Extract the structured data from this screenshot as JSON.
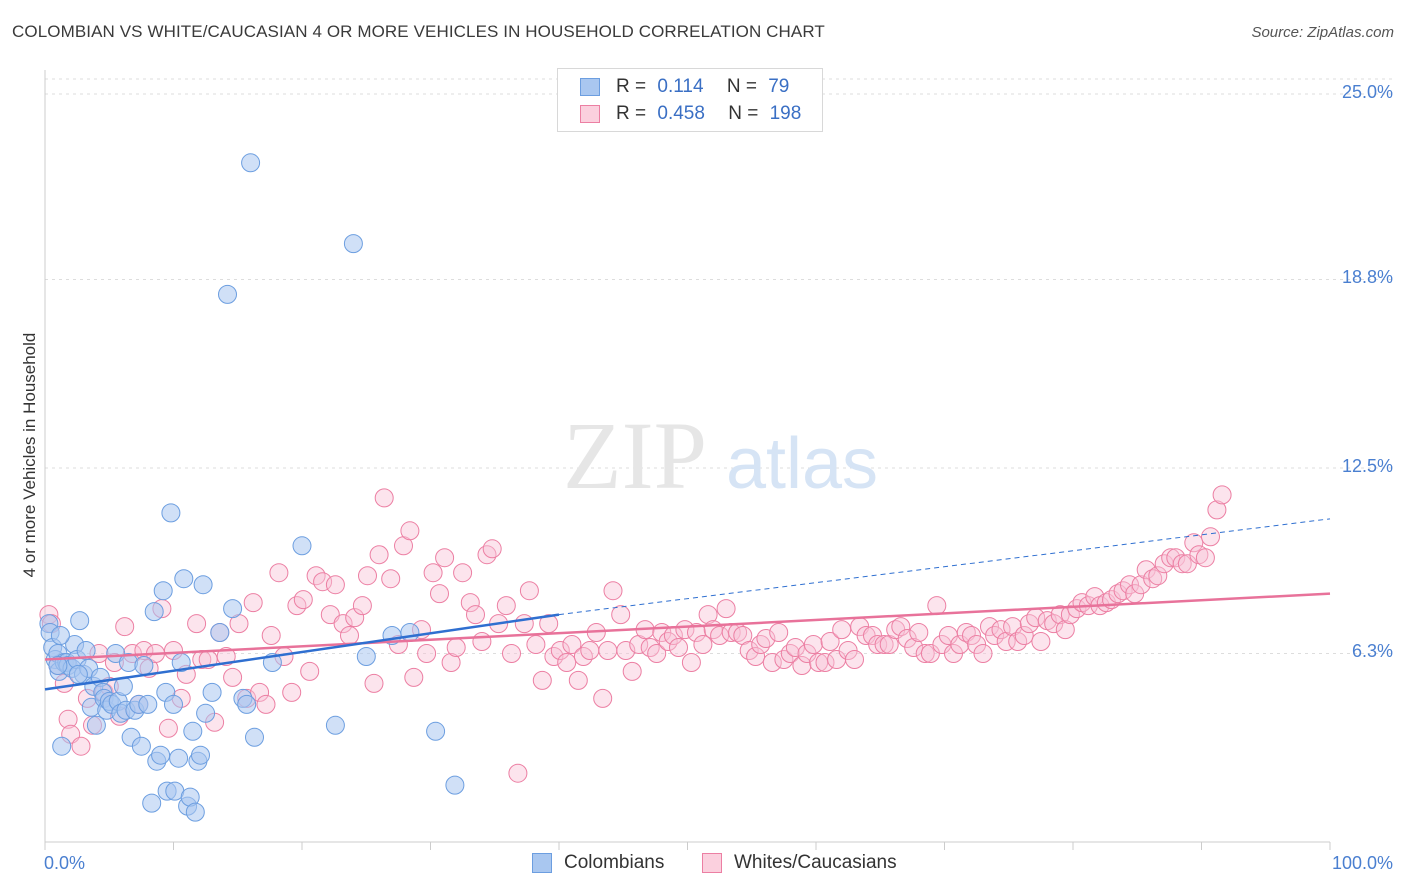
{
  "header": {
    "title": "COLOMBIAN VS WHITE/CAUCASIAN 4 OR MORE VEHICLES IN HOUSEHOLD CORRELATION CHART",
    "source": "Source: ZipAtlas.com"
  },
  "watermark": {
    "zip": "ZIP",
    "atlas": "atlas"
  },
  "legend": {
    "rows": [
      {
        "r_label": "R =",
        "r_value": "0.114",
        "n_label": "N =",
        "n_value": "79",
        "color": "#a9c7f0"
      },
      {
        "r_label": "R =",
        "r_value": "0.458",
        "n_label": "N =",
        "n_value": "198",
        "color": "#f6b8cb"
      }
    ]
  },
  "bottom_legend": {
    "items": [
      {
        "label": "Colombians",
        "color": "#a9c7f0"
      },
      {
        "label": "Whites/Caucasians",
        "color": "#f6b8cb"
      }
    ]
  },
  "chart_data": {
    "type": "scatter",
    "title": "COLOMBIAN VS WHITE/CAUCASIAN 4 OR MORE VEHICLES IN HOUSEHOLD CORRELATION CHART",
    "xlabel": "",
    "ylabel": "4 or more Vehicles in Household",
    "xlim": [
      0,
      100
    ],
    "ylim": [
      0,
      25.8
    ],
    "y_ticks": [
      6.3,
      12.5,
      18.8,
      25.0
    ],
    "y_tick_labels": [
      "6.3%",
      "12.5%",
      "18.8%",
      "25.0%"
    ],
    "x_tick_labels": [
      "0.0%",
      "100.0%"
    ],
    "grid": true,
    "legend_placement": "top-center",
    "colors": {
      "blue": "#6c9ee0",
      "pink": "#ec7fa3",
      "blue_line": "#2f6fd0",
      "pink_line": "#e8729a"
    },
    "series": [
      {
        "name": "Colombians",
        "color": "blue",
        "trend": {
          "x": [
            0,
            40
          ],
          "y": [
            5.1,
            7.6
          ],
          "extended_to": [
            100,
            10.8
          ]
        },
        "points": [
          [
            0.3,
            7.3
          ],
          [
            0.4,
            7.0
          ],
          [
            0.6,
            6.5
          ],
          [
            0.8,
            6.1
          ],
          [
            1.0,
            6.3
          ],
          [
            1.1,
            5.7
          ],
          [
            1.3,
            3.2
          ],
          [
            1.5,
            6.0
          ],
          [
            1.7,
            6.0
          ],
          [
            1.8,
            5.9
          ],
          [
            2.1,
            5.8
          ],
          [
            2.3,
            6.6
          ],
          [
            2.5,
            6.1
          ],
          [
            2.7,
            7.4
          ],
          [
            3.0,
            5.6
          ],
          [
            3.2,
            6.4
          ],
          [
            3.4,
            5.8
          ],
          [
            3.6,
            4.5
          ],
          [
            3.8,
            5.2
          ],
          [
            4.0,
            3.9
          ],
          [
            4.3,
            5.5
          ],
          [
            4.5,
            5.0
          ],
          [
            4.6,
            4.8
          ],
          [
            4.8,
            4.4
          ],
          [
            5.0,
            4.7
          ],
          [
            5.2,
            4.6
          ],
          [
            5.5,
            6.3
          ],
          [
            5.7,
            4.7
          ],
          [
            5.9,
            4.3
          ],
          [
            6.1,
            5.2
          ],
          [
            6.3,
            4.4
          ],
          [
            6.5,
            6.0
          ],
          [
            6.7,
            3.5
          ],
          [
            7.0,
            4.4
          ],
          [
            7.3,
            4.6
          ],
          [
            7.5,
            3.2
          ],
          [
            7.7,
            5.9
          ],
          [
            8.0,
            4.6
          ],
          [
            8.3,
            1.3
          ],
          [
            8.5,
            7.7
          ],
          [
            8.7,
            2.7
          ],
          [
            9.0,
            2.9
          ],
          [
            9.2,
            8.4
          ],
          [
            9.4,
            5.0
          ],
          [
            9.5,
            1.7
          ],
          [
            9.8,
            11.0
          ],
          [
            10.0,
            4.6
          ],
          [
            10.1,
            1.7
          ],
          [
            10.4,
            2.8
          ],
          [
            10.6,
            6.0
          ],
          [
            10.8,
            8.8
          ],
          [
            11.1,
            1.2
          ],
          [
            11.3,
            1.5
          ],
          [
            11.5,
            3.7
          ],
          [
            11.7,
            1.0
          ],
          [
            11.9,
            2.7
          ],
          [
            12.1,
            2.9
          ],
          [
            12.3,
            8.6
          ],
          [
            12.5,
            4.3
          ],
          [
            13.0,
            5.0
          ],
          [
            13.6,
            7.0
          ],
          [
            14.2,
            18.3
          ],
          [
            14.6,
            7.8
          ],
          [
            15.4,
            4.8
          ],
          [
            15.7,
            4.6
          ],
          [
            16.0,
            22.7
          ],
          [
            16.3,
            3.5
          ],
          [
            17.7,
            6.0
          ],
          [
            20.0,
            9.9
          ],
          [
            22.6,
            3.9
          ],
          [
            24.0,
            20.0
          ],
          [
            25.0,
            6.2
          ],
          [
            27.0,
            6.9
          ],
          [
            28.4,
            7.0
          ],
          [
            30.4,
            3.7
          ],
          [
            31.9,
            1.9
          ],
          [
            1.0,
            5.9
          ],
          [
            2.6,
            5.6
          ],
          [
            1.2,
            6.9
          ]
        ]
      },
      {
        "name": "Whites/Caucasians",
        "color": "pink",
        "trend": {
          "x": [
            0,
            100
          ],
          "y": [
            6.1,
            8.3
          ]
        },
        "points": [
          [
            0.3,
            7.6
          ],
          [
            0.5,
            7.3
          ],
          [
            1.0,
            5.9
          ],
          [
            1.5,
            5.3
          ],
          [
            1.8,
            4.1
          ],
          [
            2.0,
            3.6
          ],
          [
            2.8,
            3.2
          ],
          [
            3.3,
            4.8
          ],
          [
            3.7,
            3.9
          ],
          [
            4.2,
            6.3
          ],
          [
            4.6,
            5.0
          ],
          [
            5.0,
            5.2
          ],
          [
            5.4,
            6.0
          ],
          [
            5.8,
            4.2
          ],
          [
            6.2,
            7.2
          ],
          [
            6.8,
            6.3
          ],
          [
            7.3,
            4.6
          ],
          [
            7.7,
            6.4
          ],
          [
            8.1,
            5.8
          ],
          [
            8.6,
            6.3
          ],
          [
            9.1,
            7.8
          ],
          [
            9.6,
            3.8
          ],
          [
            10.0,
            6.4
          ],
          [
            10.6,
            4.8
          ],
          [
            11.0,
            5.6
          ],
          [
            11.8,
            7.3
          ],
          [
            12.2,
            6.1
          ],
          [
            12.7,
            6.1
          ],
          [
            13.2,
            4.0
          ],
          [
            13.6,
            7.0
          ],
          [
            14.1,
            6.2
          ],
          [
            14.6,
            5.5
          ],
          [
            15.1,
            7.3
          ],
          [
            15.7,
            4.8
          ],
          [
            16.2,
            8.0
          ],
          [
            16.7,
            5.0
          ],
          [
            17.2,
            4.6
          ],
          [
            17.6,
            6.9
          ],
          [
            18.2,
            9.0
          ],
          [
            18.6,
            6.2
          ],
          [
            19.2,
            5.0
          ],
          [
            19.6,
            7.9
          ],
          [
            20.1,
            8.1
          ],
          [
            20.6,
            5.7
          ],
          [
            21.1,
            8.9
          ],
          [
            21.6,
            8.7
          ],
          [
            22.2,
            7.6
          ],
          [
            22.6,
            8.6
          ],
          [
            23.2,
            7.3
          ],
          [
            23.7,
            6.9
          ],
          [
            24.1,
            7.5
          ],
          [
            24.7,
            7.9
          ],
          [
            25.1,
            8.9
          ],
          [
            25.6,
            5.3
          ],
          [
            26.0,
            9.6
          ],
          [
            26.4,
            11.5
          ],
          [
            26.9,
            8.8
          ],
          [
            27.5,
            6.6
          ],
          [
            27.9,
            9.9
          ],
          [
            28.4,
            10.4
          ],
          [
            28.7,
            5.5
          ],
          [
            29.3,
            7.1
          ],
          [
            29.7,
            6.3
          ],
          [
            30.2,
            9.0
          ],
          [
            30.7,
            8.3
          ],
          [
            31.1,
            9.5
          ],
          [
            31.6,
            6.0
          ],
          [
            32.0,
            6.5
          ],
          [
            32.5,
            9.0
          ],
          [
            33.1,
            8.0
          ],
          [
            33.5,
            7.6
          ],
          [
            34.0,
            6.7
          ],
          [
            34.4,
            9.6
          ],
          [
            34.8,
            9.8
          ],
          [
            35.3,
            7.3
          ],
          [
            35.9,
            7.9
          ],
          [
            36.3,
            6.3
          ],
          [
            36.8,
            2.3
          ],
          [
            37.3,
            7.3
          ],
          [
            37.7,
            8.4
          ],
          [
            38.2,
            6.6
          ],
          [
            38.7,
            5.4
          ],
          [
            39.2,
            7.3
          ],
          [
            39.6,
            6.2
          ],
          [
            40.1,
            6.4
          ],
          [
            40.6,
            6.0
          ],
          [
            41.0,
            6.6
          ],
          [
            41.5,
            5.4
          ],
          [
            41.9,
            6.2
          ],
          [
            42.4,
            6.4
          ],
          [
            42.9,
            7.0
          ],
          [
            43.4,
            4.8
          ],
          [
            43.8,
            6.4
          ],
          [
            44.2,
            8.4
          ],
          [
            44.8,
            7.6
          ],
          [
            45.2,
            6.4
          ],
          [
            45.7,
            5.7
          ],
          [
            46.2,
            6.6
          ],
          [
            46.7,
            7.1
          ],
          [
            47.1,
            6.5
          ],
          [
            47.6,
            6.3
          ],
          [
            48.0,
            7.0
          ],
          [
            48.5,
            6.7
          ],
          [
            48.9,
            6.9
          ],
          [
            49.3,
            6.5
          ],
          [
            49.8,
            7.1
          ],
          [
            50.3,
            6.0
          ],
          [
            50.7,
            7.0
          ],
          [
            51.2,
            6.6
          ],
          [
            51.6,
            7.6
          ],
          [
            52.0,
            7.1
          ],
          [
            52.5,
            6.9
          ],
          [
            53.0,
            7.8
          ],
          [
            53.4,
            7.0
          ],
          [
            53.9,
            7.0
          ],
          [
            54.3,
            6.9
          ],
          [
            54.8,
            6.4
          ],
          [
            55.3,
            6.2
          ],
          [
            55.7,
            6.6
          ],
          [
            56.1,
            6.8
          ],
          [
            56.6,
            6.0
          ],
          [
            57.1,
            7.0
          ],
          [
            57.5,
            6.1
          ],
          [
            58.0,
            6.3
          ],
          [
            58.4,
            6.5
          ],
          [
            58.9,
            5.9
          ],
          [
            59.3,
            6.3
          ],
          [
            59.8,
            6.6
          ],
          [
            60.2,
            6.0
          ],
          [
            60.7,
            6.0
          ],
          [
            61.1,
            6.7
          ],
          [
            61.6,
            6.1
          ],
          [
            62.0,
            7.1
          ],
          [
            62.5,
            6.4
          ],
          [
            63.0,
            6.1
          ],
          [
            63.4,
            7.2
          ],
          [
            63.9,
            6.9
          ],
          [
            64.4,
            6.9
          ],
          [
            64.8,
            6.6
          ],
          [
            65.3,
            6.6
          ],
          [
            65.7,
            6.6
          ],
          [
            66.2,
            7.1
          ],
          [
            66.6,
            7.2
          ],
          [
            67.1,
            6.8
          ],
          [
            67.6,
            6.5
          ],
          [
            68.0,
            7.0
          ],
          [
            68.5,
            6.3
          ],
          [
            68.9,
            6.3
          ],
          [
            69.4,
            7.9
          ],
          [
            69.8,
            6.6
          ],
          [
            70.3,
            6.9
          ],
          [
            70.7,
            6.3
          ],
          [
            71.2,
            6.6
          ],
          [
            71.7,
            7.0
          ],
          [
            72.1,
            6.9
          ],
          [
            72.5,
            6.6
          ],
          [
            73.0,
            6.3
          ],
          [
            73.5,
            7.2
          ],
          [
            73.9,
            6.9
          ],
          [
            74.4,
            7.1
          ],
          [
            74.8,
            6.7
          ],
          [
            75.3,
            7.2
          ],
          [
            75.7,
            6.7
          ],
          [
            76.2,
            6.9
          ],
          [
            76.6,
            7.3
          ],
          [
            77.1,
            7.5
          ],
          [
            77.5,
            6.7
          ],
          [
            78.0,
            7.4
          ],
          [
            78.5,
            7.3
          ],
          [
            79.0,
            7.6
          ],
          [
            79.4,
            7.1
          ],
          [
            79.8,
            7.6
          ],
          [
            80.3,
            7.8
          ],
          [
            80.7,
            8.0
          ],
          [
            81.2,
            7.9
          ],
          [
            81.7,
            8.2
          ],
          [
            82.1,
            7.9
          ],
          [
            82.6,
            8.0
          ],
          [
            83.0,
            8.1
          ],
          [
            83.5,
            8.3
          ],
          [
            83.9,
            8.4
          ],
          [
            84.4,
            8.6
          ],
          [
            84.8,
            8.3
          ],
          [
            85.3,
            8.6
          ],
          [
            85.7,
            9.1
          ],
          [
            86.2,
            8.8
          ],
          [
            86.6,
            8.9
          ],
          [
            87.1,
            9.3
          ],
          [
            87.6,
            9.5
          ],
          [
            88.0,
            9.5
          ],
          [
            88.5,
            9.3
          ],
          [
            88.9,
            9.3
          ],
          [
            89.4,
            10.0
          ],
          [
            89.8,
            9.6
          ],
          [
            90.3,
            9.5
          ],
          [
            90.7,
            10.2
          ],
          [
            91.2,
            11.1
          ],
          [
            91.6,
            11.6
          ]
        ]
      }
    ]
  }
}
